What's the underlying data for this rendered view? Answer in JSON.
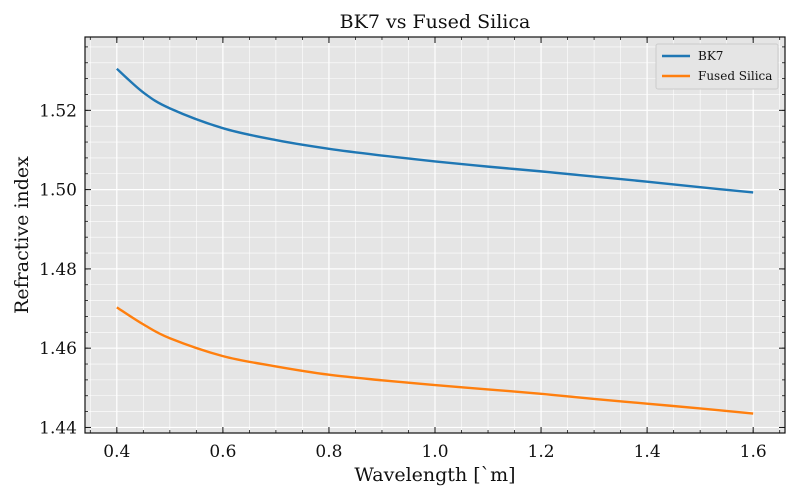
{
  "chart_data": {
    "type": "line",
    "title": "BK7 vs Fused Silica",
    "xlabel": "Wavelength [`m]",
    "ylabel": "Refractive index",
    "xlim": [
      0.34,
      1.66
    ],
    "ylim": [
      1.4386,
      1.5385
    ],
    "xticks": [
      0.4,
      0.6,
      0.8,
      1.0,
      1.2,
      1.4,
      1.6
    ],
    "xtick_labels": [
      "0.4",
      "0.6",
      "0.8",
      "1.0",
      "1.2",
      "1.4",
      "1.6"
    ],
    "yticks": [
      1.44,
      1.46,
      1.48,
      1.5,
      1.52
    ],
    "ytick_labels": [
      "1.44",
      "1.46",
      "1.48",
      "1.50",
      "1.52"
    ],
    "grid": true,
    "legend_position": "top-right",
    "series": [
      {
        "name": "BK7",
        "color": "#1f77b4",
        "x": [
          0.4,
          0.45,
          0.5,
          0.6,
          0.7,
          0.8,
          0.9,
          1.0,
          1.1,
          1.2,
          1.3,
          1.4,
          1.5,
          1.6
        ],
        "y": [
          1.5305,
          1.5245,
          1.5205,
          1.5155,
          1.5125,
          1.5103,
          1.5086,
          1.5071,
          1.5058,
          1.5046,
          1.5033,
          1.502,
          1.5006,
          1.4993
        ]
      },
      {
        "name": "Fused Silica",
        "color": "#ff7f0e",
        "x": [
          0.4,
          0.45,
          0.5,
          0.6,
          0.7,
          0.8,
          0.9,
          1.0,
          1.1,
          1.2,
          1.3,
          1.4,
          1.5,
          1.6
        ],
        "y": [
          1.4703,
          1.466,
          1.4625,
          1.458,
          1.4554,
          1.4533,
          1.4519,
          1.4507,
          1.4496,
          1.4485,
          1.4472,
          1.446,
          1.4448,
          1.4435
        ]
      }
    ]
  }
}
